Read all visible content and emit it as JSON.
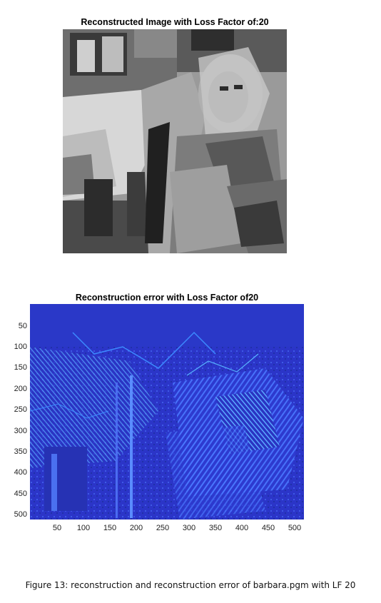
{
  "figure1": {
    "title": "Reconstructed Image with Loss Factor of:20"
  },
  "figure2": {
    "title": "Reconstruction error with Loss Factor of20",
    "yticks": [
      "50",
      "100",
      "150",
      "200",
      "250",
      "300",
      "350",
      "400",
      "450",
      "500"
    ],
    "xticks": [
      "50",
      "100",
      "150",
      "200",
      "250",
      "300",
      "350",
      "400",
      "450",
      "500"
    ]
  },
  "caption": "Figure 13: reconstruction and reconstruction error of barbara.pgm with LF 20",
  "colors": {
    "error_base": "#2b35c8",
    "error_highlight": "#3fa0ff",
    "gray_mid": "#8a8a8a"
  }
}
